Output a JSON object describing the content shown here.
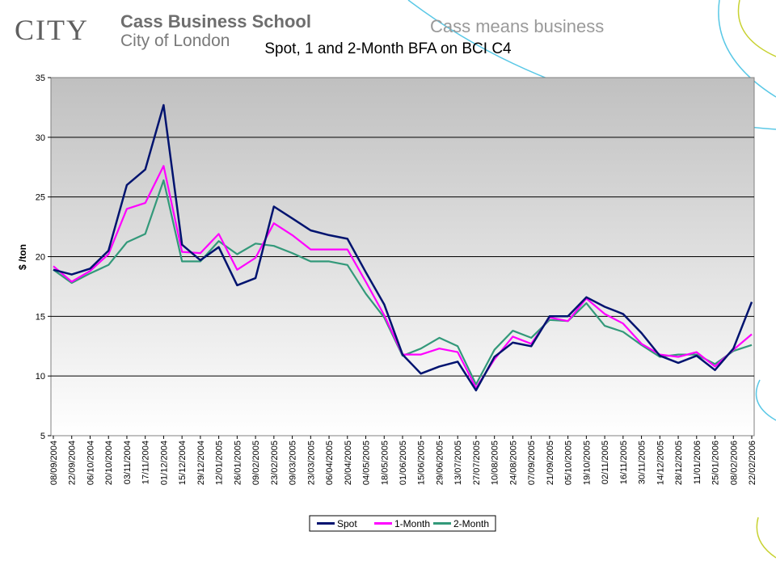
{
  "header": {
    "logo_text": "CITY",
    "school_name": "Cass Business School",
    "school_sub": "City of London",
    "tagline": "Cass means business"
  },
  "colors": {
    "spot": "#00136f",
    "one_month": "#ff00ff",
    "two_month": "#33997a",
    "deco_cyan": "#5ac8e6",
    "deco_yellow": "#c8d232"
  },
  "chart_data": {
    "type": "line",
    "title": "Spot, 1 and 2-Month BFA on BCI C4",
    "xlabel": "",
    "ylabel": "$ /ton",
    "ylim": [
      5,
      35
    ],
    "yticks": [
      5,
      10,
      15,
      20,
      25,
      30,
      35
    ],
    "grid": true,
    "legend_position": "bottom",
    "x": [
      "08/09/2004",
      "22/09/2004",
      "06/10/2004",
      "20/10/2004",
      "03/11/2004",
      "17/11/2004",
      "01/12/2004",
      "15/12/2004",
      "29/12/2004",
      "12/01/2005",
      "26/01/2005",
      "09/02/2005",
      "23/02/2005",
      "09/03/2005",
      "23/03/2005",
      "06/04/2005",
      "20/04/2005",
      "04/05/2005",
      "18/05/2005",
      "01/06/2005",
      "15/06/2005",
      "29/06/2005",
      "13/07/2005",
      "27/07/2005",
      "10/08/2005",
      "24/08/2005",
      "07/09/2005",
      "21/09/2005",
      "05/10/2005",
      "19/10/2005",
      "02/11/2005",
      "16/11/2005",
      "30/11/2005",
      "14/12/2005",
      "28/12/2005",
      "11/01/2006",
      "25/01/2006",
      "08/02/2006",
      "22/02/2006"
    ],
    "series": [
      {
        "name": "Spot",
        "values": [
          18.9,
          18.5,
          19.0,
          20.5,
          26.0,
          27.3,
          32.7,
          21.0,
          19.7,
          20.8,
          17.6,
          18.2,
          24.2,
          23.2,
          22.2,
          21.8,
          21.5,
          18.7,
          16.0,
          11.8,
          10.2,
          10.8,
          11.2,
          8.8,
          11.6,
          12.8,
          12.5,
          15.0,
          15.0,
          16.6,
          15.8,
          15.2,
          13.6,
          11.7,
          11.1,
          11.7,
          10.5,
          12.3,
          16.2
        ]
      },
      {
        "name": "1-Month",
        "values": [
          19.2,
          17.9,
          18.8,
          20.2,
          24.0,
          24.5,
          27.6,
          20.4,
          20.3,
          21.9,
          18.9,
          19.9,
          22.8,
          21.8,
          20.6,
          20.6,
          20.6,
          17.9,
          15.1,
          11.8,
          11.8,
          12.3,
          12.0,
          9.0,
          11.4,
          13.3,
          12.7,
          14.9,
          14.6,
          16.5,
          15.2,
          14.4,
          12.7,
          11.8,
          11.6,
          12.0,
          10.8,
          12.2,
          13.5
        ]
      },
      {
        "name": "2-Month",
        "values": [
          18.9,
          17.8,
          18.6,
          19.3,
          21.2,
          21.9,
          26.4,
          19.6,
          19.6,
          21.3,
          20.2,
          21.1,
          20.9,
          20.3,
          19.6,
          19.6,
          19.3,
          16.9,
          14.9,
          11.7,
          12.3,
          13.2,
          12.5,
          9.3,
          12.2,
          13.8,
          13.2,
          14.7,
          14.6,
          16.1,
          14.2,
          13.7,
          12.6,
          11.6,
          11.8,
          11.8,
          11.0,
          12.1,
          12.6
        ]
      }
    ]
  }
}
